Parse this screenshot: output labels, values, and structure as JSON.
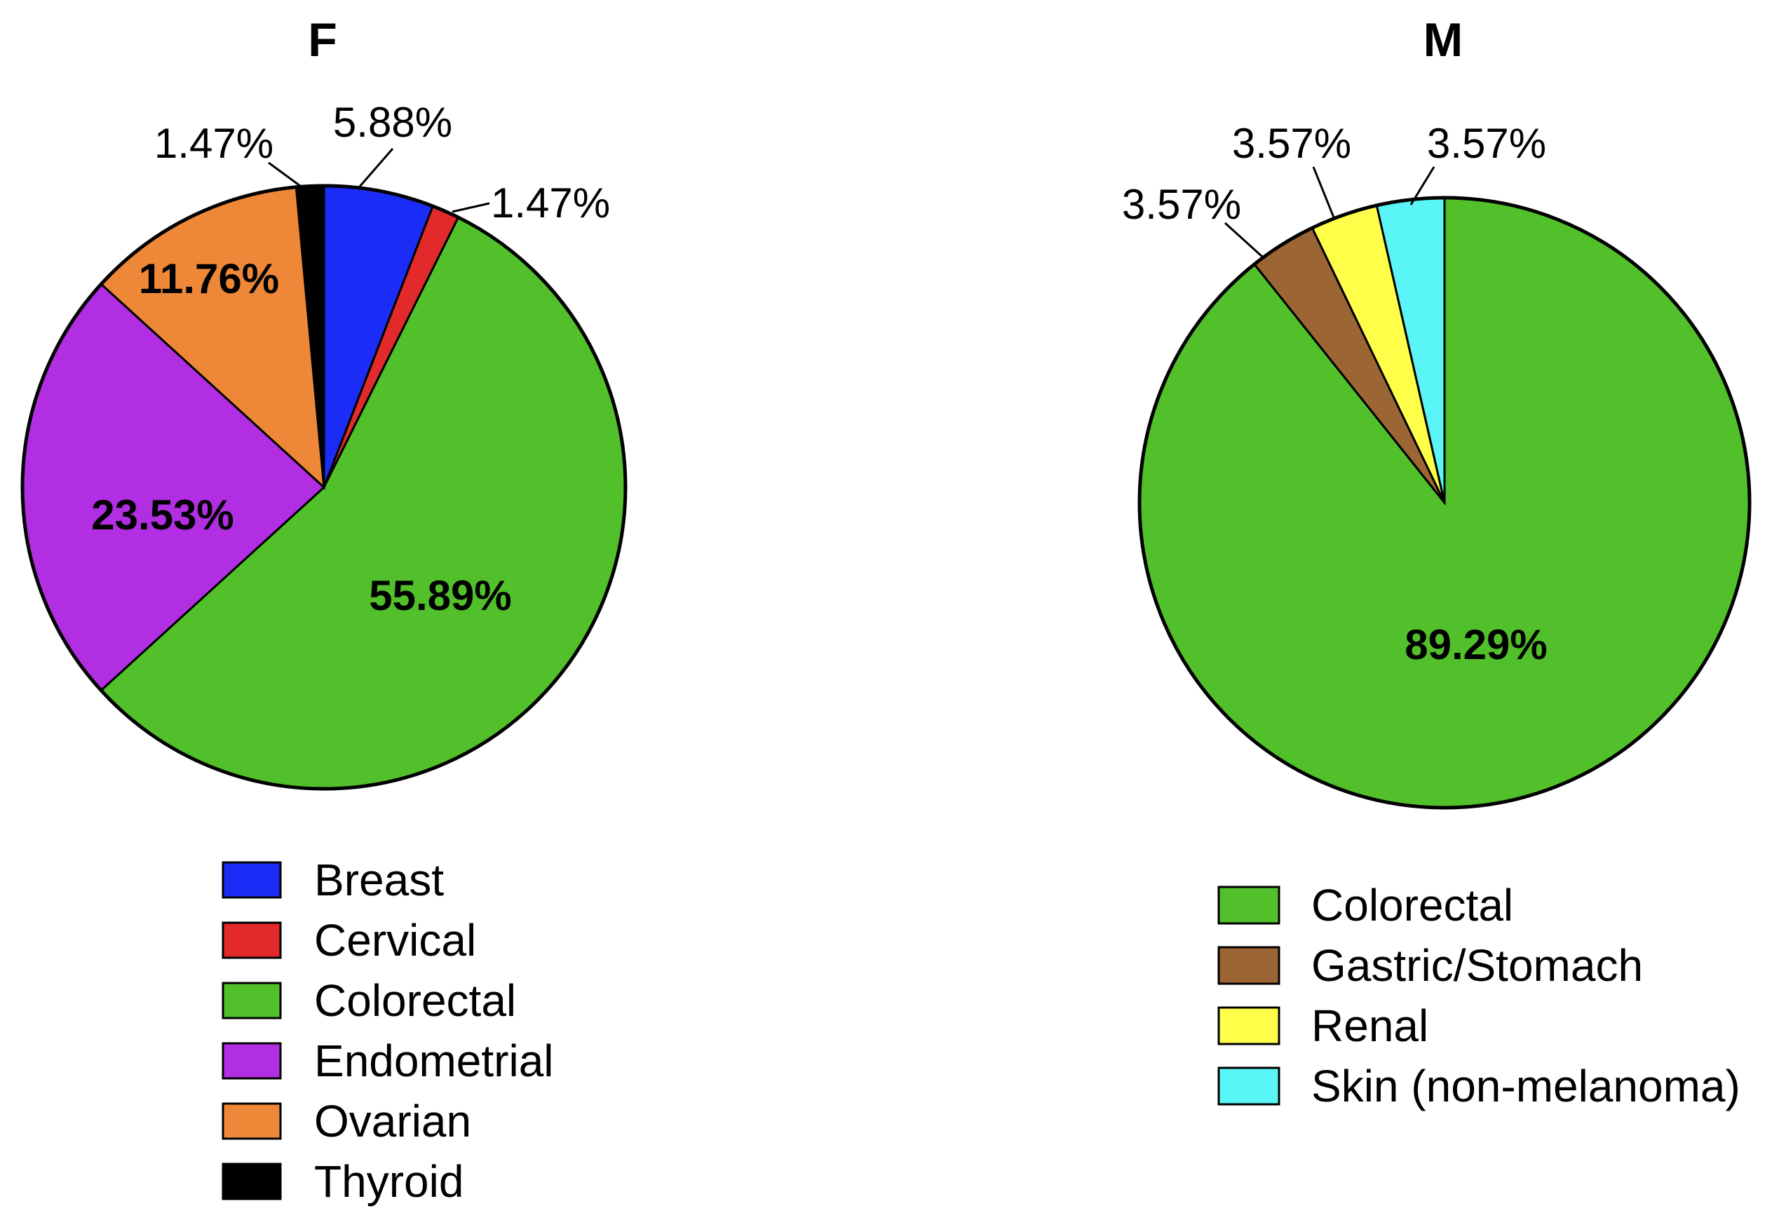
{
  "chart_data": [
    {
      "type": "pie",
      "title": "F",
      "slices": [
        {
          "label": "Breast",
          "value": 5.88,
          "display": "5.88%",
          "color": "#1a2cf5"
        },
        {
          "label": "Cervical",
          "value": 1.47,
          "display": "1.47%",
          "color": "#e22a2a"
        },
        {
          "label": "Colorectal",
          "value": 55.89,
          "display": "55.89%",
          "color": "#52c02a"
        },
        {
          "label": "Endometrial",
          "value": 23.53,
          "display": "23.53%",
          "color": "#b22ee2"
        },
        {
          "label": "Ovarian",
          "value": 11.76,
          "display": "11.76%",
          "color": "#ee8838"
        },
        {
          "label": "Thyroid",
          "value": 1.47,
          "display": "1.47%",
          "color": "#000000"
        }
      ],
      "legend": [
        "Breast",
        "Cervical",
        "Colorectal",
        "Endometrial",
        "Ovarian",
        "Thyroid"
      ],
      "legend_position": "bottom"
    },
    {
      "type": "pie",
      "title": "M",
      "slices": [
        {
          "label": "Colorectal",
          "value": 89.29,
          "display": "89.29%",
          "color": "#52c02a"
        },
        {
          "label": "Gastric/Stomach",
          "value": 3.57,
          "display": "3.57%",
          "color": "#9c6534"
        },
        {
          "label": "Renal",
          "value": 3.57,
          "display": "3.57%",
          "color": "#ffff4a"
        },
        {
          "label": "Skin (non-melanoma)",
          "value": 3.57,
          "display": "3.57%",
          "color": "#5af5f7"
        }
      ],
      "legend": [
        "Colorectal",
        "Gastric/Stomach",
        "Renal",
        "Skin (non-melanoma)"
      ],
      "legend_position": "bottom"
    }
  ]
}
